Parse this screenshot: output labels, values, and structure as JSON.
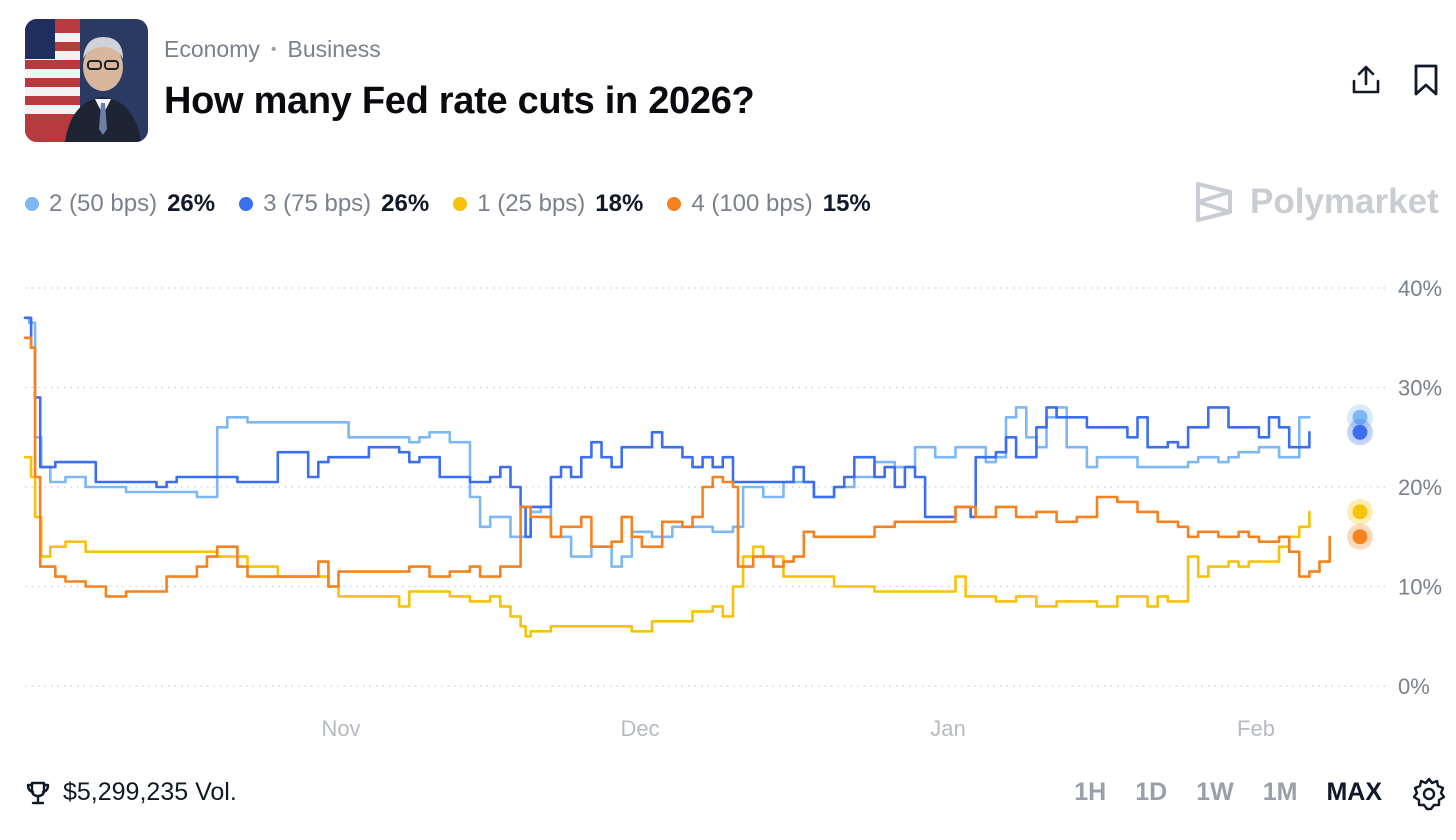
{
  "header": {
    "category": "Economy",
    "subcategory": "Business",
    "title": "How many Fed rate cuts in 2026?",
    "share_icon": "share-icon",
    "bookmark_icon": "bookmark-icon"
  },
  "brand": {
    "name": "Polymarket",
    "icon": "polymarket-logo-icon"
  },
  "legend": [
    {
      "name": "2 (50 bps)",
      "value": "26%",
      "color": "#7db8f5"
    },
    {
      "name": "3 (75 bps)",
      "value": "26%",
      "color": "#3c6ff0"
    },
    {
      "name": "1 (25 bps)",
      "value": "18%",
      "color": "#f7c20a"
    },
    {
      "name": "4 (100 bps)",
      "value": "15%",
      "color": "#f5821f"
    }
  ],
  "footer": {
    "volume": "$5,299,235 Vol.",
    "volume_icon": "trophy-icon",
    "ranges": [
      "1H",
      "1D",
      "1W",
      "1M",
      "MAX"
    ],
    "active_range": "MAX",
    "settings_icon": "gear-icon"
  },
  "chart_data": {
    "type": "line",
    "x_ticks": [
      "Nov",
      "Dec",
      "Jan",
      "Feb"
    ],
    "y_ticks": [
      "0%",
      "10%",
      "20%",
      "30%",
      "40%"
    ],
    "ylim": [
      0,
      40
    ],
    "grid": true,
    "series": [
      {
        "name": "2 (50 bps)",
        "color": "#7db8f5",
        "points": [
          [
            0,
            37
          ],
          [
            0.4,
            36.5
          ],
          [
            1,
            25
          ],
          [
            1.6,
            22
          ],
          [
            2.5,
            20.5
          ],
          [
            4,
            21
          ],
          [
            6,
            20
          ],
          [
            10,
            19.5
          ],
          [
            14,
            19.5
          ],
          [
            17,
            19
          ],
          [
            18.5,
            19
          ],
          [
            19,
            26
          ],
          [
            20,
            27
          ],
          [
            22,
            26.5
          ],
          [
            30,
            26.5
          ],
          [
            32,
            25
          ],
          [
            37,
            25
          ],
          [
            38,
            24.5
          ],
          [
            39,
            25
          ],
          [
            40,
            25.5
          ],
          [
            42,
            24.5
          ],
          [
            44,
            19
          ],
          [
            45,
            16
          ],
          [
            46,
            17
          ],
          [
            48,
            15
          ],
          [
            50,
            17.5
          ],
          [
            51,
            18
          ],
          [
            52,
            15
          ],
          [
            54,
            13
          ],
          [
            56,
            14
          ],
          [
            58,
            12
          ],
          [
            59,
            13
          ],
          [
            60,
            15.5
          ],
          [
            62,
            15
          ],
          [
            64,
            16
          ],
          [
            68,
            15.5
          ],
          [
            70,
            16
          ],
          [
            71,
            20
          ],
          [
            73,
            19
          ],
          [
            75,
            20.5
          ],
          [
            78,
            19
          ],
          [
            80,
            20
          ],
          [
            82,
            21
          ],
          [
            84,
            22.5
          ],
          [
            86,
            22
          ],
          [
            88,
            24
          ],
          [
            90,
            23
          ],
          [
            92,
            24
          ],
          [
            95,
            22.5
          ],
          [
            96,
            23
          ],
          [
            97,
            27
          ],
          [
            98,
            28
          ],
          [
            99,
            25
          ],
          [
            100,
            24
          ],
          [
            101,
            27
          ],
          [
            102,
            28
          ],
          [
            103,
            24
          ],
          [
            105,
            22
          ],
          [
            106,
            23
          ],
          [
            110,
            22
          ],
          [
            115,
            22.5
          ],
          [
            116,
            23
          ],
          [
            118,
            22.5
          ],
          [
            119,
            23
          ],
          [
            120,
            23.5
          ],
          [
            122,
            24
          ],
          [
            124,
            23
          ],
          [
            126,
            27
          ],
          [
            127,
            27
          ]
        ]
      },
      {
        "name": "3 (75 bps)",
        "color": "#3c6ff0",
        "points": [
          [
            0,
            37
          ],
          [
            0.6,
            34
          ],
          [
            1,
            29
          ],
          [
            1.5,
            22
          ],
          [
            2,
            22
          ],
          [
            3,
            22.5
          ],
          [
            6,
            22.5
          ],
          [
            7,
            20.5
          ],
          [
            10,
            20.5
          ],
          [
            13,
            20
          ],
          [
            14,
            20.5
          ],
          [
            15,
            21
          ],
          [
            18,
            21
          ],
          [
            21,
            20.5
          ],
          [
            24,
            20.5
          ],
          [
            25,
            23.5
          ],
          [
            27,
            23.5
          ],
          [
            28,
            21
          ],
          [
            29,
            22.5
          ],
          [
            30,
            23
          ],
          [
            34,
            24
          ],
          [
            36,
            24
          ],
          [
            37,
            23.5
          ],
          [
            38,
            22.5
          ],
          [
            39,
            23
          ],
          [
            40,
            23
          ],
          [
            41,
            21
          ],
          [
            44,
            20.5
          ],
          [
            46,
            21
          ],
          [
            47,
            22
          ],
          [
            48,
            20
          ],
          [
            49,
            18
          ],
          [
            49.5,
            15
          ],
          [
            50,
            18
          ],
          [
            52,
            21
          ],
          [
            53,
            22
          ],
          [
            54,
            21
          ],
          [
            55,
            23
          ],
          [
            56,
            24.5
          ],
          [
            57,
            23
          ],
          [
            58,
            22
          ],
          [
            59,
            24
          ],
          [
            61,
            24
          ],
          [
            62,
            25.5
          ],
          [
            63,
            24
          ],
          [
            65,
            23
          ],
          [
            66,
            22
          ],
          [
            67,
            23
          ],
          [
            68,
            22
          ],
          [
            69,
            23
          ],
          [
            70,
            20.5
          ],
          [
            75,
            20.5
          ],
          [
            76,
            22
          ],
          [
            77,
            20.5
          ],
          [
            78,
            19
          ],
          [
            80,
            20
          ],
          [
            81,
            21
          ],
          [
            82,
            23
          ],
          [
            84,
            21
          ],
          [
            85,
            22
          ],
          [
            86,
            20
          ],
          [
            87,
            22
          ],
          [
            88,
            21
          ],
          [
            89,
            17
          ],
          [
            92,
            18
          ],
          [
            93,
            18
          ],
          [
            93.5,
            17
          ],
          [
            94,
            23
          ],
          [
            96,
            23.5
          ],
          [
            97,
            25
          ],
          [
            98,
            23
          ],
          [
            99,
            23
          ],
          [
            100,
            26
          ],
          [
            101,
            28
          ],
          [
            102,
            27
          ],
          [
            104,
            27
          ],
          [
            105,
            26
          ],
          [
            107,
            26
          ],
          [
            109,
            25
          ],
          [
            110,
            27
          ],
          [
            111,
            24
          ],
          [
            113,
            24.5
          ],
          [
            114,
            24
          ],
          [
            115,
            26
          ],
          [
            117,
            28
          ],
          [
            118,
            28
          ],
          [
            119,
            26
          ],
          [
            120,
            26
          ],
          [
            122,
            25
          ],
          [
            123,
            27
          ],
          [
            124,
            26
          ],
          [
            125,
            24
          ],
          [
            126,
            24
          ],
          [
            127,
            25.5
          ]
        ]
      },
      {
        "name": "1 (25 bps)",
        "color": "#f7c20a",
        "points": [
          [
            0,
            23
          ],
          [
            0.6,
            21
          ],
          [
            1,
            17
          ],
          [
            1.6,
            13
          ],
          [
            2.5,
            14
          ],
          [
            4,
            14.5
          ],
          [
            6,
            13.5
          ],
          [
            10,
            13.5
          ],
          [
            15,
            13.5
          ],
          [
            18,
            13.5
          ],
          [
            19,
            13
          ],
          [
            22,
            12
          ],
          [
            25,
            11
          ],
          [
            28,
            11
          ],
          [
            30,
            10
          ],
          [
            31,
            9
          ],
          [
            34,
            9
          ],
          [
            36,
            9
          ],
          [
            37,
            8
          ],
          [
            38,
            9.5
          ],
          [
            40,
            9.5
          ],
          [
            42,
            9
          ],
          [
            44,
            8.5
          ],
          [
            46,
            9
          ],
          [
            47,
            8
          ],
          [
            48,
            7
          ],
          [
            49,
            6
          ],
          [
            49.5,
            5
          ],
          [
            50,
            5.5
          ],
          [
            52,
            6
          ],
          [
            56,
            6
          ],
          [
            58,
            6
          ],
          [
            60,
            5.5
          ],
          [
            62,
            6.5
          ],
          [
            64,
            6.5
          ],
          [
            66,
            7.5
          ],
          [
            68,
            8
          ],
          [
            69,
            7
          ],
          [
            70,
            10
          ],
          [
            71,
            13
          ],
          [
            72,
            14
          ],
          [
            73,
            13
          ],
          [
            75,
            11
          ],
          [
            77,
            11
          ],
          [
            80,
            10
          ],
          [
            82,
            10
          ],
          [
            84,
            9.5
          ],
          [
            86,
            9.5
          ],
          [
            90,
            9.5
          ],
          [
            92,
            11
          ],
          [
            93,
            9
          ],
          [
            96,
            8.5
          ],
          [
            98,
            9
          ],
          [
            100,
            8
          ],
          [
            102,
            8.5
          ],
          [
            104,
            8.5
          ],
          [
            106,
            8
          ],
          [
            108,
            9
          ],
          [
            110,
            9
          ],
          [
            111,
            8
          ],
          [
            112,
            9
          ],
          [
            113,
            8.5
          ],
          [
            114,
            8.5
          ],
          [
            115,
            13
          ],
          [
            116,
            11
          ],
          [
            117,
            12
          ],
          [
            119,
            12.5
          ],
          [
            120,
            12
          ],
          [
            121,
            12.5
          ],
          [
            123,
            12.5
          ],
          [
            124,
            14
          ],
          [
            125,
            15
          ],
          [
            126,
            16
          ],
          [
            127,
            17.5
          ]
        ]
      },
      {
        "name": "4 (100 bps)",
        "color": "#f5821f",
        "points": [
          [
            0,
            35
          ],
          [
            0.6,
            34
          ],
          [
            1,
            21
          ],
          [
            1.5,
            12
          ],
          [
            2,
            12
          ],
          [
            3,
            11
          ],
          [
            4,
            10.5
          ],
          [
            6,
            10
          ],
          [
            8,
            9
          ],
          [
            10,
            9.5
          ],
          [
            12,
            9.5
          ],
          [
            14,
            11
          ],
          [
            17,
            12
          ],
          [
            18,
            13
          ],
          [
            19,
            14
          ],
          [
            20,
            14
          ],
          [
            21,
            12
          ],
          [
            22,
            11
          ],
          [
            24,
            11
          ],
          [
            28,
            11
          ],
          [
            29,
            12.5
          ],
          [
            30,
            10
          ],
          [
            31,
            11.5
          ],
          [
            33,
            11.5
          ],
          [
            36,
            11.5
          ],
          [
            38,
            12
          ],
          [
            40,
            11
          ],
          [
            42,
            11.5
          ],
          [
            44,
            12
          ],
          [
            45,
            11
          ],
          [
            47,
            12
          ],
          [
            48,
            12
          ],
          [
            49,
            18
          ],
          [
            50,
            17
          ],
          [
            51,
            17
          ],
          [
            52,
            15
          ],
          [
            53,
            16
          ],
          [
            55,
            17
          ],
          [
            56,
            14
          ],
          [
            58,
            14.5
          ],
          [
            59,
            17
          ],
          [
            60,
            15
          ],
          [
            61,
            14
          ],
          [
            63,
            16.5
          ],
          [
            65,
            16
          ],
          [
            66,
            17
          ],
          [
            67,
            20
          ],
          [
            68,
            21
          ],
          [
            69,
            20.5
          ],
          [
            70,
            20
          ],
          [
            70.5,
            12
          ],
          [
            72,
            13
          ],
          [
            74,
            12
          ],
          [
            75,
            12.5
          ],
          [
            76,
            13
          ],
          [
            77,
            15.5
          ],
          [
            78,
            15
          ],
          [
            80,
            15
          ],
          [
            84,
            16
          ],
          [
            86,
            16.5
          ],
          [
            90,
            16.5
          ],
          [
            92,
            18
          ],
          [
            94,
            17
          ],
          [
            96,
            18
          ],
          [
            98,
            17
          ],
          [
            100,
            17.5
          ],
          [
            102,
            16.5
          ],
          [
            104,
            17
          ],
          [
            106,
            19
          ],
          [
            108,
            18.5
          ],
          [
            110,
            17.5
          ],
          [
            112,
            16.5
          ],
          [
            114,
            16
          ],
          [
            115,
            15
          ],
          [
            116,
            15.5
          ],
          [
            118,
            15
          ],
          [
            120,
            15.5
          ],
          [
            121,
            15
          ],
          [
            122,
            14.5
          ],
          [
            124,
            15
          ],
          [
            125,
            13.5
          ],
          [
            126,
            11
          ],
          [
            127,
            11.5
          ],
          [
            128,
            12.5
          ],
          [
            129,
            15
          ]
        ]
      }
    ]
  }
}
